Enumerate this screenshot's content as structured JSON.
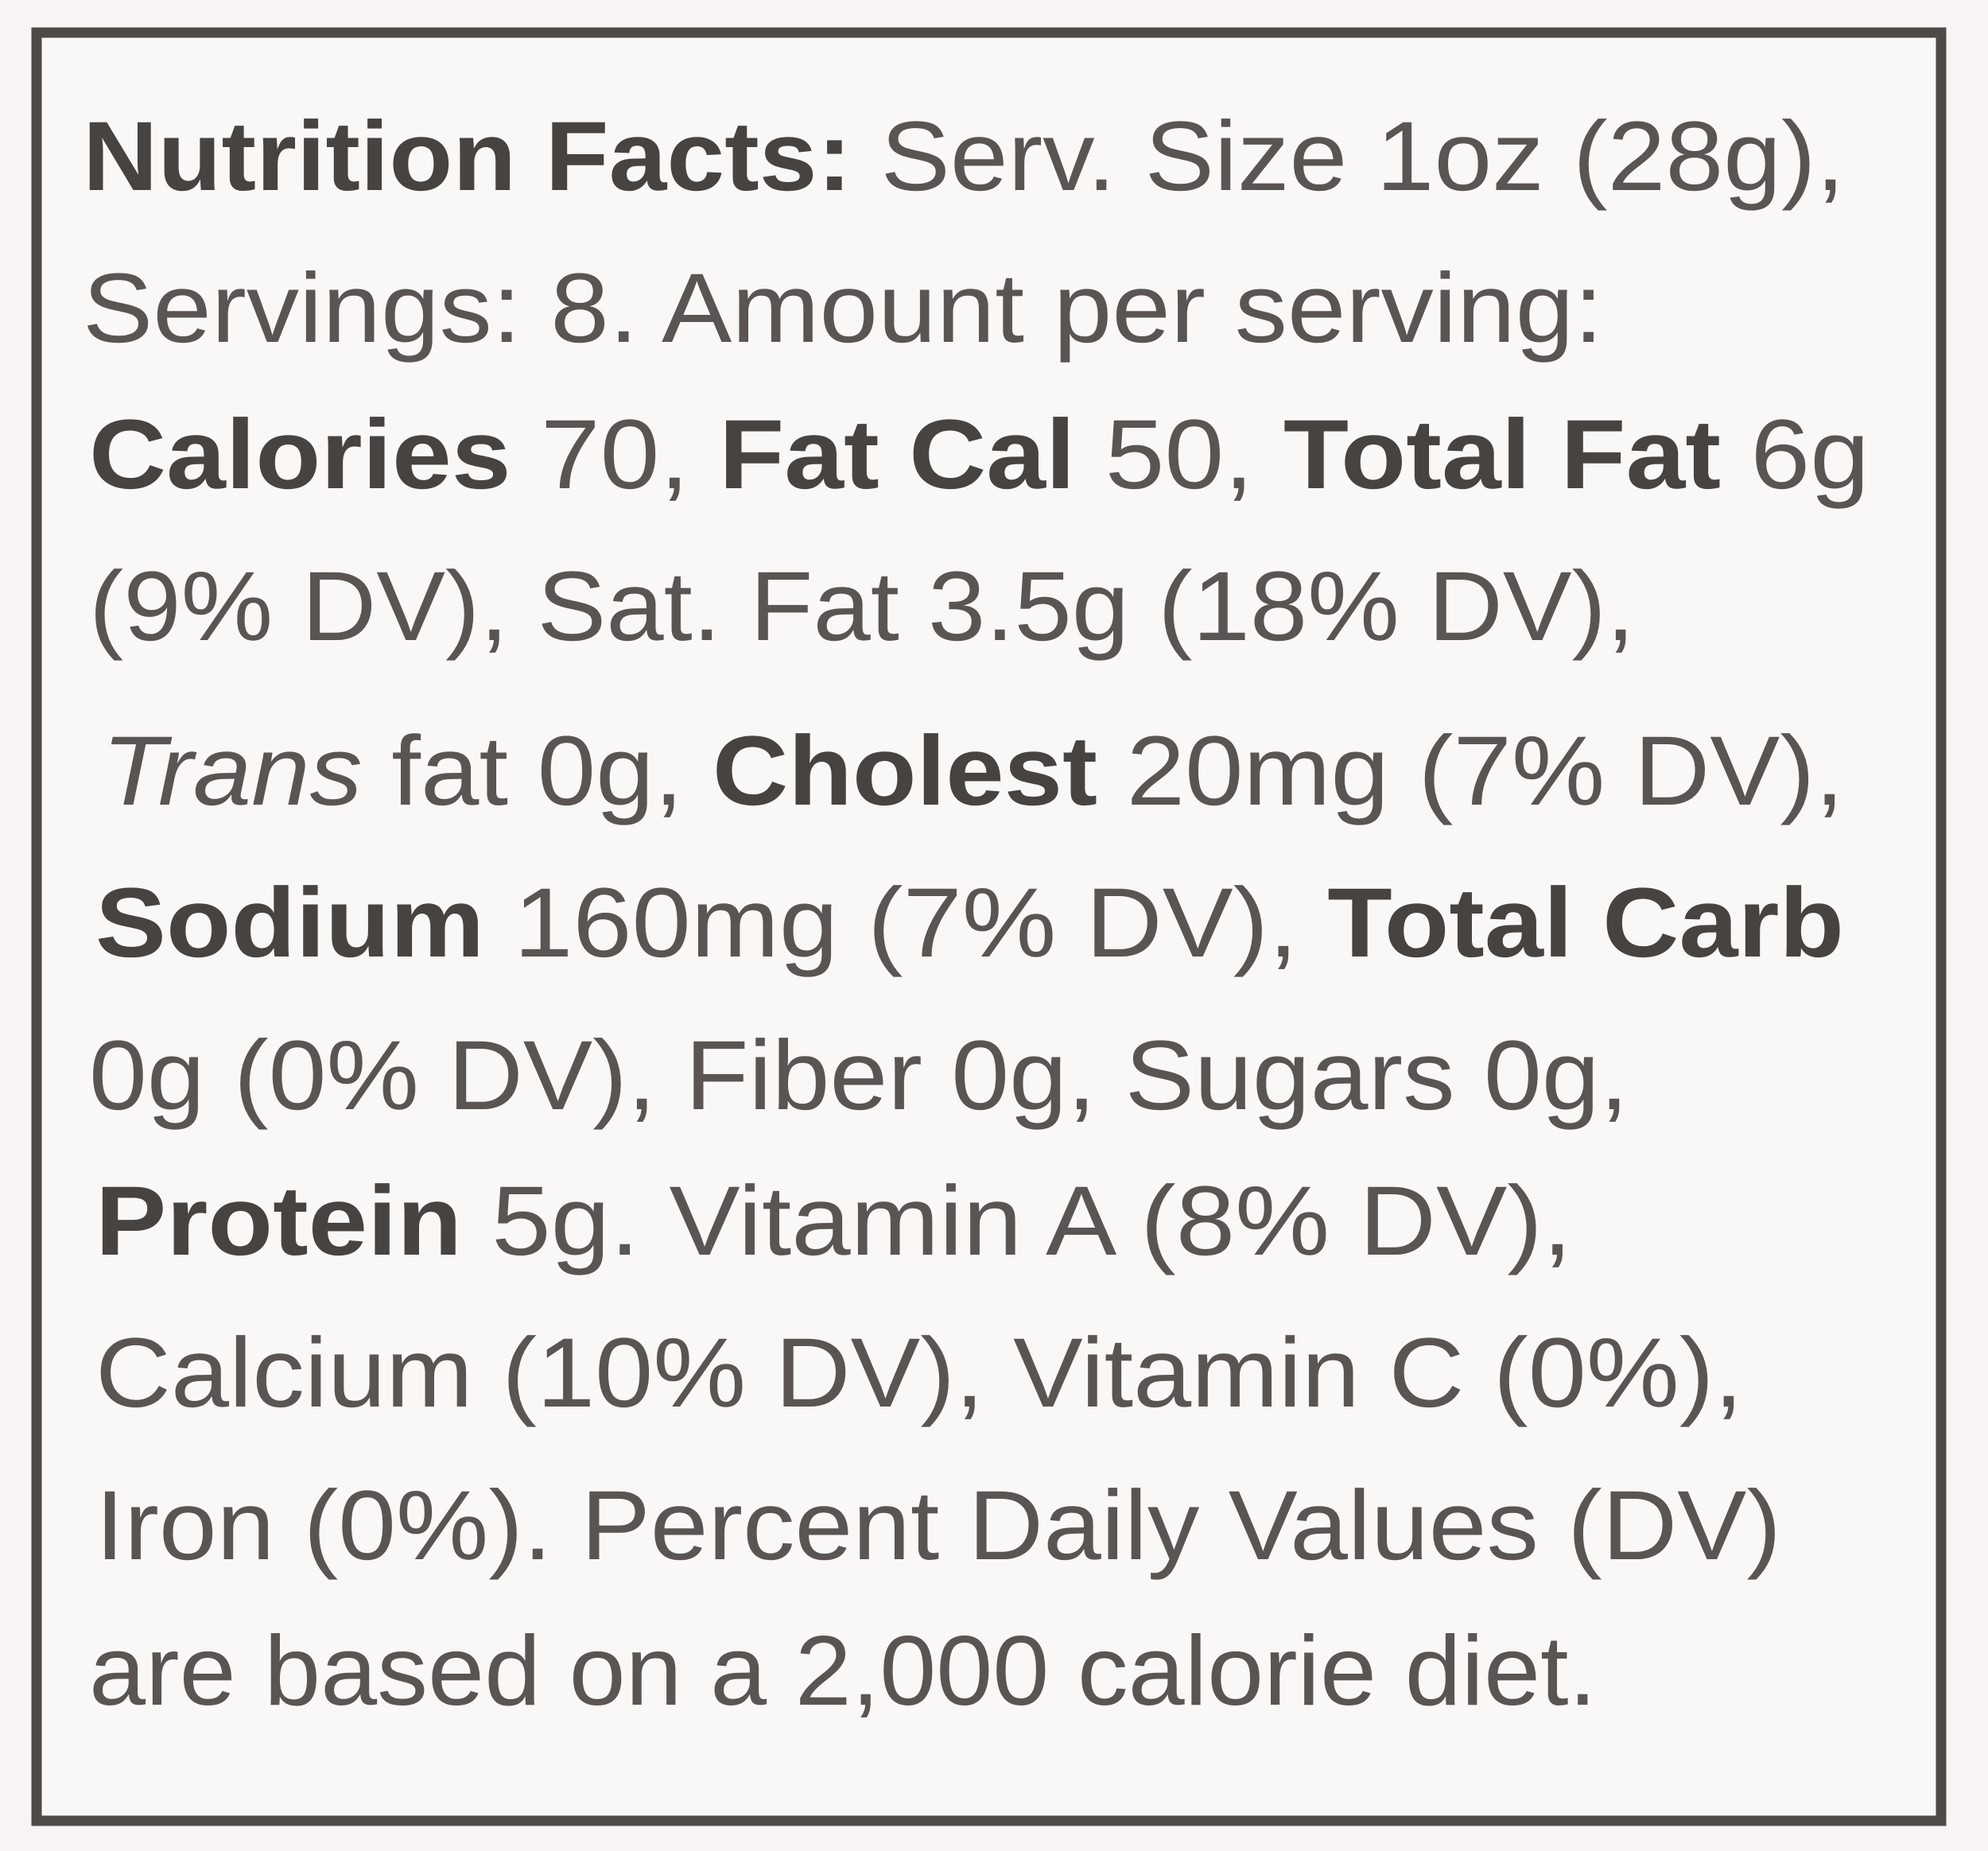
{
  "label": {
    "lines": [
      [
        "Nutrition Facts:",
        " Serv. Size 1oz (28g),"
      ],
      [
        "Servings: 8. Amount per serving:"
      ],
      [
        "Calories",
        " 70, ",
        "Fat Cal",
        " 50, ",
        "Total Fat",
        " 6g"
      ],
      [
        "(9% DV), Sat. Fat 3.5g (18% DV),"
      ],
      [
        "Trans",
        " fat 0g, ",
        "Cholest",
        " 20mg (7% DV),"
      ],
      [
        "Sodium",
        " 160mg (7% DV), ",
        "Total Carb"
      ],
      [
        "0g (0% DV), Fiber 0g, Sugars 0g,"
      ],
      [
        "Protein",
        " 5g. Vitamin A (8% DV),"
      ],
      [
        "Calcium (10% DV), Vitamin C (0%),"
      ],
      [
        "Iron (0%). Percent Daily Values (DV)"
      ],
      [
        "are based on a 2,000 calorie diet."
      ]
    ]
  }
}
